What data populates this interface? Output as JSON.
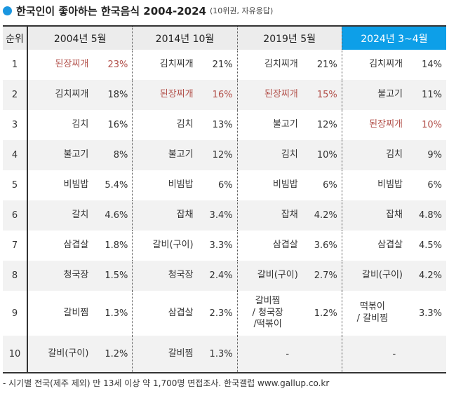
{
  "title": {
    "main": "한국인이 좋아하는 한국음식 2004-2024",
    "sub": "(10위권, 자유응답)"
  },
  "header": {
    "rank": "순위",
    "cols": [
      "2004년 5월",
      "2014년 10월",
      "2019년 5월",
      "2024년 3~4월"
    ]
  },
  "highlight_color": "#0d9fe8",
  "red_color": "#b2504a",
  "rows": [
    {
      "rank": "1",
      "cells": [
        {
          "f": "된장찌개",
          "p": "23%",
          "red": true
        },
        {
          "f": "김치찌개",
          "p": "21%"
        },
        {
          "f": "김치찌개",
          "p": "21%"
        },
        {
          "f": "김치찌개",
          "p": "14%"
        }
      ]
    },
    {
      "rank": "2",
      "cells": [
        {
          "f": "김치찌개",
          "p": "18%"
        },
        {
          "f": "된장찌개",
          "p": "16%",
          "red": true
        },
        {
          "f": "된장찌개",
          "p": "15%",
          "red": true
        },
        {
          "f": "불고기",
          "p": "11%"
        }
      ]
    },
    {
      "rank": "3",
      "cells": [
        {
          "f": "김치",
          "p": "16%"
        },
        {
          "f": "김치",
          "p": "13%"
        },
        {
          "f": "불고기",
          "p": "12%"
        },
        {
          "f": "된장찌개",
          "p": "10%",
          "red": true
        }
      ]
    },
    {
      "rank": "4",
      "cells": [
        {
          "f": "불고기",
          "p": "8%"
        },
        {
          "f": "불고기",
          "p": "12%"
        },
        {
          "f": "김치",
          "p": "10%"
        },
        {
          "f": "김치",
          "p": "9%"
        }
      ]
    },
    {
      "rank": "5",
      "cells": [
        {
          "f": "비빔밥",
          "p": "5.4%"
        },
        {
          "f": "비빔밥",
          "p": "6%"
        },
        {
          "f": "비빔밥",
          "p": "6%"
        },
        {
          "f": "비빔밥",
          "p": "6%"
        }
      ]
    },
    {
      "rank": "6",
      "cells": [
        {
          "f": "갈치",
          "p": "4.6%"
        },
        {
          "f": "잡채",
          "p": "3.4%"
        },
        {
          "f": "잡채",
          "p": "4.2%"
        },
        {
          "f": "잡채",
          "p": "4.8%"
        }
      ]
    },
    {
      "rank": "7",
      "cells": [
        {
          "f": "삼겹살",
          "p": "1.8%"
        },
        {
          "f": "갈비(구이)",
          "p": "3.3%"
        },
        {
          "f": "삼겹살",
          "p": "3.6%"
        },
        {
          "f": "삼겹살",
          "p": "4.5%"
        }
      ]
    },
    {
      "rank": "8",
      "cells": [
        {
          "f": "청국장",
          "p": "1.5%"
        },
        {
          "f": "청국장",
          "p": "2.4%"
        },
        {
          "f": "갈비(구이)",
          "p": "2.7%"
        },
        {
          "f": "갈비(구이)",
          "p": "4.2%"
        }
      ]
    },
    {
      "rank": "9",
      "cells": [
        {
          "f": "갈비찜",
          "p": "1.3%"
        },
        {
          "f": "삼겹살",
          "p": "2.3%"
        },
        {
          "f": "갈비찜\n/ 청국장\n/떡볶이",
          "p": "1.2%"
        },
        {
          "f": "떡볶이\n/ 갈비찜",
          "p": "3.3%"
        }
      ]
    },
    {
      "rank": "10",
      "cells": [
        {
          "f": "갈비(구이)",
          "p": "1.2%"
        },
        {
          "f": "갈비찜",
          "p": "1.3%"
        },
        {
          "dash": "-"
        },
        {
          "dash": "-"
        }
      ]
    }
  ],
  "footer": "- 시기별 전국(제주 제외) 만 13세 이상 약 1,700명 면접조사. 한국갤럽 www.gallup.co.kr"
}
